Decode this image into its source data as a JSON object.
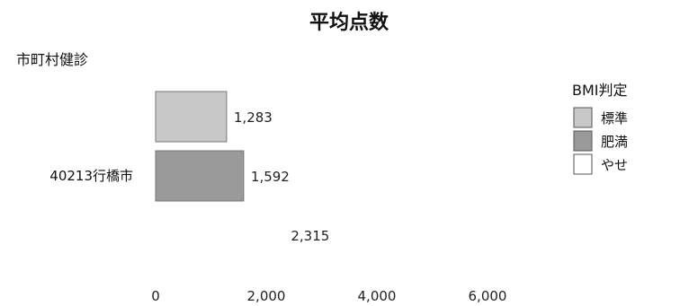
{
  "chart_data": {
    "type": "bar",
    "orientation": "horizontal",
    "title": "平均点数",
    "group_header": "市町村健診",
    "categories": [
      "40213行橋市"
    ],
    "series": [
      {
        "name": "標準",
        "values": [
          1283
        ],
        "value_label": "1,283",
        "color": "#c8c8c8"
      },
      {
        "name": "肥満",
        "values": [
          1592
        ],
        "value_label": "1,592",
        "color": "#9a9a9a"
      },
      {
        "name": "やせ",
        "values": [
          2315
        ],
        "value_label": "2,315",
        "color": "#ffffff"
      }
    ],
    "xlim": [
      0,
      6000
    ],
    "xticks": [
      0,
      2000,
      4000,
      6000
    ],
    "xtick_labels": [
      "0",
      "2,000",
      "4,000",
      "6,000"
    ],
    "grid": false,
    "legend": {
      "title": "BMI判定",
      "position": "right"
    }
  }
}
